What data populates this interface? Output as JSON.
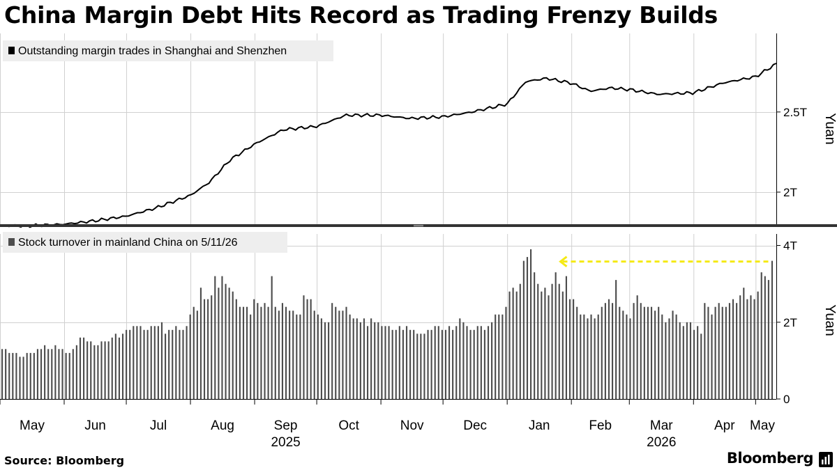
{
  "title": "China Margin Debt Hits Record as Trading Frenzy Builds",
  "source": "Source: Bloomberg",
  "brand": "Bloomberg",
  "colors": {
    "line": "#000000",
    "bars": "#4d4d4d",
    "grid": "#d0d0d0",
    "legend_bg": "#eeeeee",
    "annotation": "#f5ea14",
    "divider": "#333333"
  },
  "icons": {
    "logo_mark": "bloomberg-terminal-mark-icon"
  },
  "chart_data": [
    {
      "type": "line",
      "legend": "Outstanding margin trades in Shanghai and Shenzhen",
      "ylabel": "Yuan",
      "ylim": [
        1.8,
        2.99
      ],
      "yticks": [
        {
          "value": 2.0,
          "label": "2T"
        },
        {
          "value": 2.5,
          "label": "2.5T"
        }
      ],
      "x": [
        "2025-05-01",
        "2025-05-15",
        "2025-06-01",
        "2025-06-15",
        "2025-07-01",
        "2025-07-15",
        "2025-08-01",
        "2025-08-10",
        "2025-08-20",
        "2025-09-01",
        "2025-09-15",
        "2025-10-01",
        "2025-10-15",
        "2025-11-01",
        "2025-11-15",
        "2025-12-01",
        "2025-12-15",
        "2026-01-01",
        "2026-01-10",
        "2026-01-20",
        "2026-02-01",
        "2026-02-10",
        "2026-02-20",
        "2026-03-01",
        "2026-03-15",
        "2026-04-01",
        "2026-04-15",
        "2026-05-01",
        "2026-05-11"
      ],
      "values": [
        1.79,
        1.79,
        1.8,
        1.82,
        1.85,
        1.9,
        1.98,
        2.06,
        2.2,
        2.3,
        2.39,
        2.41,
        2.48,
        2.48,
        2.46,
        2.47,
        2.5,
        2.55,
        2.69,
        2.71,
        2.68,
        2.63,
        2.65,
        2.64,
        2.61,
        2.62,
        2.68,
        2.72,
        2.8
      ]
    },
    {
      "type": "bar",
      "legend": "Stock turnover in mainland China on 5/11/26",
      "ylabel": "Yuan",
      "ylim": [
        0,
        4.3
      ],
      "yticks": [
        {
          "value": 0,
          "label": "0"
        },
        {
          "value": 2,
          "label": "2T"
        },
        {
          "value": 4,
          "label": "4T"
        }
      ],
      "x_start": "2025-05-01",
      "x_end": "2026-05-11",
      "values": [
        1.3,
        1.3,
        1.2,
        1.2,
        1.2,
        1.1,
        1.1,
        1.2,
        1.2,
        1.2,
        1.3,
        1.3,
        1.4,
        1.3,
        1.3,
        1.4,
        1.3,
        1.3,
        1.2,
        1.2,
        1.3,
        1.4,
        1.6,
        1.6,
        1.5,
        1.5,
        1.4,
        1.4,
        1.5,
        1.5,
        1.5,
        1.6,
        1.7,
        1.6,
        1.7,
        1.8,
        1.8,
        1.9,
        1.9,
        1.9,
        1.8,
        1.8,
        1.9,
        1.9,
        1.9,
        2.0,
        1.7,
        1.8,
        1.8,
        1.9,
        1.8,
        1.8,
        1.9,
        2.2,
        2.4,
        2.3,
        2.9,
        2.6,
        2.6,
        2.7,
        3.2,
        2.9,
        3.2,
        3.0,
        2.9,
        2.8,
        2.6,
        2.4,
        2.4,
        2.4,
        2.2,
        2.6,
        2.5,
        2.4,
        2.5,
        2.4,
        3.2,
        2.4,
        2.3,
        2.5,
        2.4,
        2.3,
        2.3,
        2.2,
        2.2,
        2.7,
        2.6,
        2.6,
        2.3,
        2.2,
        2.1,
        2.0,
        2.0,
        2.5,
        2.4,
        2.3,
        2.3,
        2.4,
        2.2,
        2.1,
        2.1,
        2.0,
        2.1,
        1.9,
        2.1,
        2.0,
        2.0,
        1.9,
        1.9,
        1.9,
        1.8,
        1.8,
        1.9,
        1.8,
        1.9,
        1.8,
        1.8,
        1.7,
        1.7,
        1.7,
        1.8,
        1.8,
        1.9,
        1.9,
        1.8,
        1.8,
        1.9,
        1.8,
        1.9,
        2.1,
        2.0,
        1.9,
        1.8,
        1.8,
        1.9,
        1.9,
        1.8,
        1.9,
        2.0,
        2.2,
        2.2,
        2.2,
        2.4,
        2.8,
        2.9,
        2.8,
        3.0,
        3.6,
        3.7,
        3.9,
        3.3,
        3.0,
        2.8,
        2.9,
        2.7,
        3.0,
        3.3,
        3.0,
        2.8,
        3.2,
        2.6,
        2.6,
        2.4,
        2.2,
        2.2,
        2.1,
        2.2,
        2.1,
        2.2,
        2.4,
        2.5,
        2.6,
        2.5,
        3.1,
        2.4,
        2.3,
        2.2,
        2.1,
        2.5,
        2.7,
        2.5,
        2.4,
        2.4,
        2.4,
        2.3,
        2.4,
        2.2,
        2.0,
        2.1,
        2.3,
        2.2,
        2.0,
        1.9,
        2.0,
        2.0,
        1.8,
        1.9,
        1.7,
        2.5,
        2.4,
        2.2,
        2.4,
        2.5,
        2.4,
        2.4,
        2.5,
        2.6,
        2.5,
        2.7,
        2.9,
        2.6,
        2.7,
        2.6,
        2.8,
        3.3,
        3.2,
        3.1,
        3.6
      ],
      "annotation": {
        "type": "dashed-line",
        "y": 3.58,
        "from_x_index": 155
      }
    }
  ],
  "x_axis": {
    "months": [
      "May",
      "Jun",
      "Jul",
      "Aug",
      "Sep",
      "Oct",
      "Nov",
      "Dec",
      "Jan",
      "Feb",
      "Mar",
      "Apr",
      "May"
    ],
    "month_dates": [
      "2025-05-01",
      "2025-06-01",
      "2025-07-01",
      "2025-08-01",
      "2025-09-01",
      "2025-10-01",
      "2025-11-01",
      "2025-12-01",
      "2026-01-01",
      "2026-02-01",
      "2026-03-01",
      "2026-04-01",
      "2026-05-01"
    ],
    "years": [
      {
        "label": "2025",
        "date": "2025-09-01"
      },
      {
        "label": "2026",
        "date": "2026-03-01"
      }
    ]
  }
}
